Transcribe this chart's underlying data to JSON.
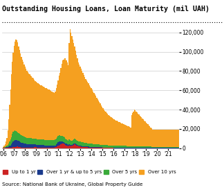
{
  "title": "Outstanding Housing Loans, Loan Maturity (mil UAH)",
  "source": "Source: National Bank of Ukraine, Global Property Guide",
  "colors": {
    "up_to_1yr": "#cc2222",
    "over_1_5yr": "#1a3a8c",
    "over_5yr": "#3aaa3a",
    "over_10yr": "#f5a020"
  },
  "legend": [
    "Up to 1 yr",
    "Over 1 yr & up to 5 yrs",
    "Over 5 yrs",
    "Over 10 yrs"
  ],
  "ylim": [
    0,
    130000
  ],
  "yticks": [
    0,
    20000,
    40000,
    60000,
    80000,
    100000,
    120000
  ],
  "xtick_labels": [
    "'06",
    "'07",
    "'08",
    "'09",
    "'10",
    "'11",
    "'12",
    "'13",
    "'14",
    "'15",
    "'16",
    "'17",
    "'18",
    "'19",
    "'20",
    "'21"
  ],
  "up_to_1yr": [
    180,
    200,
    220,
    250,
    270,
    300,
    320,
    340,
    380,
    500,
    700,
    900,
    1000,
    1200,
    1400,
    1600,
    1800,
    1500,
    1200,
    1000,
    800,
    700,
    650,
    600,
    580,
    560,
    540,
    600,
    650,
    700,
    750,
    780,
    800,
    850,
    900,
    950,
    900,
    850,
    800,
    780,
    760,
    780,
    800,
    820,
    840,
    820,
    800,
    790,
    800,
    820,
    840,
    850,
    800,
    780,
    760,
    740,
    800,
    1000,
    1500,
    2000,
    2500,
    3000,
    3500,
    4000,
    4500,
    5000,
    4500,
    4000,
    3500,
    3000,
    2500,
    2000,
    3000,
    2500,
    2000,
    2500,
    3000,
    3500,
    4000,
    3500,
    3000,
    2500,
    2000,
    1800,
    1600,
    1500,
    1400,
    1300,
    1200,
    1100,
    1000,
    950,
    900,
    850,
    800,
    750,
    700,
    650,
    600,
    580,
    560,
    540,
    520,
    500,
    480,
    460,
    440,
    420,
    400,
    380,
    360,
    340,
    320,
    300,
    280,
    260,
    240,
    220,
    200,
    180,
    160,
    150,
    140,
    130,
    120,
    110,
    100,
    95,
    90,
    85,
    80,
    75,
    70,
    65,
    60,
    58,
    56,
    54,
    52,
    50,
    48,
    46,
    44,
    42,
    40,
    38,
    37,
    36,
    35,
    34,
    33,
    32,
    31,
    30,
    29,
    28,
    27,
    26,
    25,
    24,
    23,
    22,
    21,
    20
  ],
  "over_1_5yr": [
    400,
    500,
    600,
    800,
    1000,
    1200,
    1500,
    2000,
    2500,
    3500,
    5000,
    6000,
    6500,
    7000,
    6800,
    6500,
    6200,
    5900,
    5600,
    5300,
    5000,
    4800,
    4600,
    4400,
    4200,
    4000,
    3800,
    3700,
    3600,
    3500,
    3400,
    3300,
    3200,
    3100,
    3000,
    2900,
    2800,
    2700,
    2600,
    2500,
    2400,
    2350,
    2300,
    2250,
    2200,
    2150,
    2100,
    2050,
    2000,
    1980,
    1960,
    1940,
    1920,
    1900,
    1880,
    1860,
    1850,
    2000,
    2500,
    3000,
    3500,
    4000,
    3500,
    3000,
    2500,
    2200,
    2000,
    1800,
    1600,
    1500,
    1400,
    1350,
    1300,
    1250,
    1200,
    1150,
    1100,
    1080,
    1060,
    1040,
    1020,
    1000,
    980,
    960,
    940,
    920,
    900,
    880,
    860,
    840,
    820,
    800,
    780,
    760,
    740,
    720,
    700,
    680,
    660,
    640,
    620,
    600,
    580,
    560,
    540,
    520,
    510,
    500,
    490,
    480,
    470,
    460,
    450,
    440,
    430,
    420,
    410,
    400,
    395,
    390,
    385,
    380,
    375,
    370,
    365,
    360,
    355,
    350,
    345,
    340,
    335,
    330,
    325,
    320,
    315,
    310,
    305,
    300,
    295,
    290,
    285,
    280,
    275,
    270,
    265,
    260,
    255,
    250,
    245,
    240,
    235,
    230,
    225,
    220,
    215,
    210,
    205,
    200,
    195,
    190,
    185,
    180,
    175,
    170
  ],
  "over_5yr": [
    200,
    300,
    500,
    800,
    1200,
    2000,
    3000,
    4500,
    6000,
    7500,
    9000,
    10000,
    10500,
    10000,
    9500,
    9000,
    8500,
    8200,
    8000,
    7800,
    7600,
    7400,
    7200,
    7000,
    6800,
    6600,
    6500,
    6400,
    6350,
    6300,
    6250,
    6200,
    6150,
    6100,
    6050,
    6000,
    5950,
    5900,
    5850,
    5800,
    5750,
    5800,
    5850,
    5900,
    5850,
    5800,
    5750,
    5700,
    5700,
    5750,
    5800,
    5850,
    5800,
    5750,
    5700,
    5650,
    5600,
    5800,
    6000,
    6200,
    6400,
    6500,
    6300,
    6000,
    5800,
    5600,
    5400,
    5200,
    5000,
    4800,
    4700,
    4600,
    4500,
    4400,
    4300,
    4400,
    4500,
    4600,
    4700,
    4600,
    4500,
    4400,
    4300,
    4200,
    4100,
    4000,
    3900,
    3800,
    3700,
    3650,
    3600,
    3550,
    3500,
    3450,
    3400,
    3350,
    3300,
    3250,
    3200,
    3150,
    3100,
    3050,
    3000,
    2950,
    2900,
    2850,
    2800,
    2750,
    2700,
    2650,
    2600,
    2550,
    2500,
    2450,
    2400,
    2350,
    2300,
    2280,
    2260,
    2240,
    2220,
    2200,
    2180,
    2160,
    2140,
    2120,
    2100,
    2080,
    2060,
    2040,
    2020,
    2000,
    1980,
    1960,
    1940,
    1920,
    1900,
    1880,
    1860,
    1840,
    1820,
    1800,
    1780,
    1760,
    1740,
    1720,
    1700,
    1680,
    1660,
    1640,
    1620,
    1600,
    1580,
    1560,
    1540,
    1520,
    1500,
    1480,
    1460,
    1440,
    1420,
    1400,
    1380,
    1360
  ],
  "over_10yr": [
    800,
    1500,
    3000,
    5000,
    8000,
    15000,
    25000,
    38000,
    52000,
    65000,
    75000,
    82000,
    88000,
    92000,
    95000,
    95000,
    93000,
    90000,
    87000,
    84000,
    81000,
    79000,
    77000,
    75000,
    73000,
    71000,
    69500,
    68000,
    67000,
    66000,
    65000,
    64000,
    63000,
    62000,
    61000,
    60000,
    59000,
    58500,
    58000,
    57500,
    57000,
    56500,
    56000,
    55500,
    55000,
    54500,
    54000,
    53500,
    53000,
    52500,
    52000,
    51500,
    51000,
    50500,
    50000,
    49500,
    49000,
    50000,
    52000,
    55000,
    58000,
    62000,
    65000,
    70000,
    75000,
    78000,
    80000,
    82000,
    83000,
    82000,
    80000,
    78000,
    100000,
    115000,
    112000,
    108000,
    104000,
    100000,
    96000,
    92000,
    88000,
    85000,
    82000,
    80000,
    78000,
    76000,
    74000,
    72000,
    70000,
    68000,
    66000,
    65000,
    63500,
    62000,
    60500,
    59000,
    57500,
    56000,
    54500,
    53000,
    51500,
    50000,
    48500,
    47000,
    45500,
    44000,
    42500,
    41000,
    39500,
    38000,
    36800,
    35600,
    34500,
    33400,
    32400,
    31400,
    30500,
    29700,
    29000,
    28400,
    27800,
    27200,
    26700,
    26200,
    25700,
    25200,
    24700,
    24300,
    23900,
    23500,
    23100,
    22700,
    22300,
    21900,
    21500,
    21100,
    20700,
    20300,
    19900,
    19500,
    32000,
    34000,
    36000,
    38000,
    37000,
    36000,
    35000,
    34000,
    33000,
    32000,
    31000,
    30000,
    29000,
    28000,
    27000,
    26000,
    25000,
    24000,
    23000,
    22000,
    21000,
    20000,
    19000,
    18000
  ]
}
